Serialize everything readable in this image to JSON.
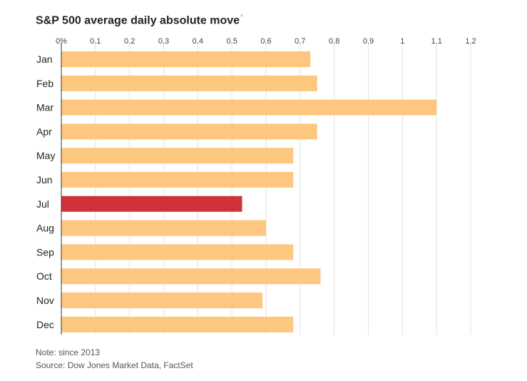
{
  "title": "S&P 500 average daily absolute move",
  "title_marker": "°",
  "note": "Note: since 2013",
  "source": "Source: Dow Jones Market Data, FactSet",
  "chart_data": {
    "type": "bar",
    "orientation": "horizontal",
    "categories": [
      "Jan",
      "Feb",
      "Mar",
      "Apr",
      "May",
      "Jun",
      "Jul",
      "Aug",
      "Sep",
      "Oct",
      "Nov",
      "Dec"
    ],
    "values": [
      0.73,
      0.75,
      1.1,
      0.75,
      0.68,
      0.68,
      0.53,
      0.6,
      0.68,
      0.76,
      0.59,
      0.68
    ],
    "highlight": "Jul",
    "xlim": [
      0,
      1.2
    ],
    "xticks": [
      "0%",
      "0.1",
      "0.2",
      "0.3",
      "0.4",
      "0.5",
      "0.6",
      "0.7",
      "0.8",
      "0.9",
      "1",
      "1.1",
      "1.2"
    ],
    "grid": true,
    "colors": {
      "bar": "#fdc77f",
      "highlight": "#d2313b",
      "grid": "#e2e2e2",
      "axis": "#333333"
    }
  }
}
